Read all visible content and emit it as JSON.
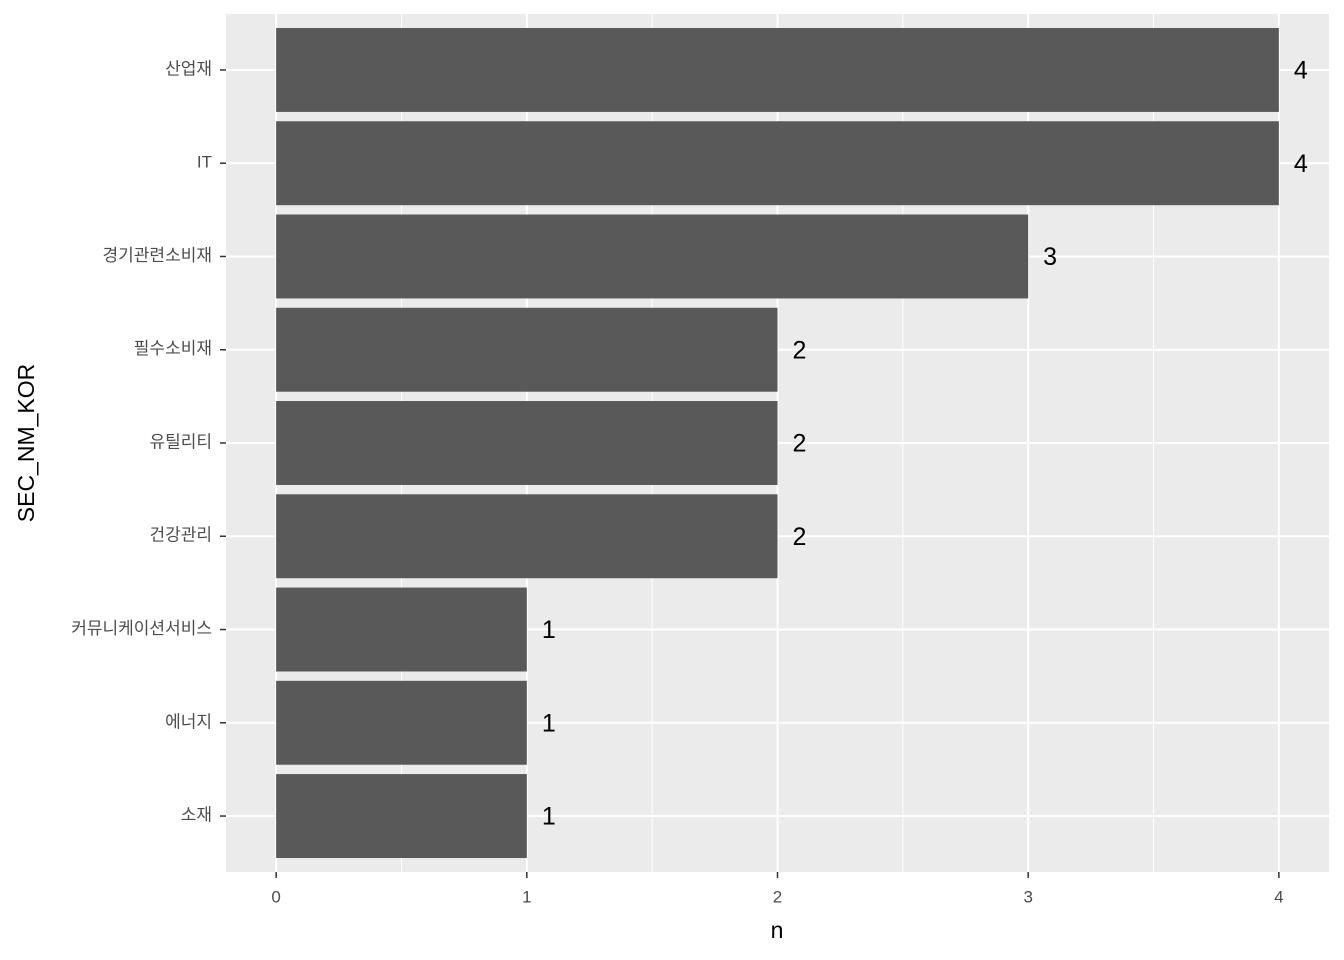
{
  "chart_data": {
    "type": "bar",
    "orientation": "horizontal",
    "x_label": "n",
    "y_label": "SEC_NM_KOR",
    "categories": [
      "산업재",
      "IT",
      "경기관련소비재",
      "필수소비재",
      "유틸리티",
      "건강관리",
      "커뮤니케이션서비스",
      "에너지",
      "소재"
    ],
    "values": [
      4,
      4,
      3,
      2,
      2,
      2,
      1,
      1,
      1
    ],
    "color": "#595959",
    "xlim": [
      -0.2,
      4.2
    ],
    "xticks": [
      0,
      1,
      2,
      3,
      4
    ],
    "grid": true
  }
}
